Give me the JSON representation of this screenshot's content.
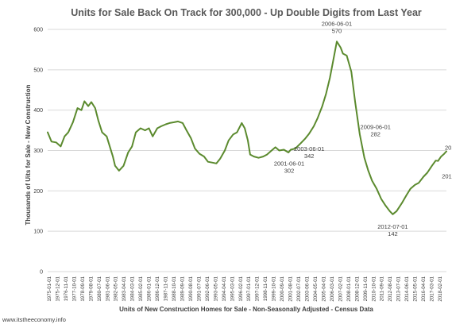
{
  "chart_data": {
    "type": "line",
    "title": "Units for Sale Back On Track for 300,000 - Up Double Digits from Last Year",
    "xlabel": "Units of New Construction Homes for Sale - Non-Seasonally Adjusted - Census Data",
    "ylabel": "Thousands of Uits for Sale - New Construction",
    "ylim": [
      0,
      600
    ],
    "yticks": [
      0,
      100,
      200,
      300,
      400,
      500,
      600
    ],
    "grid": "horizontal",
    "legend": "none",
    "x_range": [
      "1975-01-01",
      "2018-05-01"
    ],
    "x_tick_labels": [
      "1975-01-01",
      "1975-12-01",
      "1976-11-01",
      "1977-10-01",
      "1978-09-01",
      "1979-08-01",
      "1980-07-01",
      "1981-06-01",
      "1982-05-01",
      "1983-04-01",
      "1984-03-01",
      "1985-02-01",
      "1986-01-01",
      "1986-12-01",
      "1987-11-01",
      "1988-10-01",
      "1989-09-01",
      "1990-08-01",
      "1991-07-01",
      "1992-06-01",
      "1993-05-01",
      "1994-04-01",
      "1995-03-01",
      "1996-02-01",
      "1997-01-01",
      "1997-12-01",
      "1998-11-01",
      "1999-10-01",
      "2000-09-01",
      "2001-08-01",
      "2002-07-01",
      "2003-06-01",
      "2004-05-01",
      "2005-04-01",
      "2006-03-01",
      "2007-02-01",
      "2008-01-01",
      "2008-12-01",
      "2009-11-01",
      "2010-10-01",
      "2011-09-01",
      "2012-08-01",
      "2013-07-01",
      "2014-06-01",
      "2015-05-01",
      "2016-04-01",
      "2017-03-01",
      "2018-02-01"
    ],
    "series": [
      {
        "color": "#5b8a2e",
        "points": [
          [
            "1975-01-01",
            345
          ],
          [
            "1975-06-01",
            322
          ],
          [
            "1975-12-01",
            320
          ],
          [
            "1976-06-01",
            310
          ],
          [
            "1976-11-01",
            335
          ],
          [
            "1977-04-01",
            345
          ],
          [
            "1977-10-01",
            370
          ],
          [
            "1978-04-01",
            405
          ],
          [
            "1978-09-01",
            400
          ],
          [
            "1979-01-01",
            422
          ],
          [
            "1979-06-01",
            410
          ],
          [
            "1979-10-01",
            420
          ],
          [
            "1980-03-01",
            405
          ],
          [
            "1980-07-01",
            375
          ],
          [
            "1980-12-01",
            345
          ],
          [
            "1981-06-01",
            335
          ],
          [
            "1981-10-01",
            310
          ],
          [
            "1982-02-01",
            285
          ],
          [
            "1982-05-01",
            262
          ],
          [
            "1982-10-01",
            250
          ],
          [
            "1983-04-01",
            262
          ],
          [
            "1983-10-01",
            295
          ],
          [
            "1984-03-01",
            310
          ],
          [
            "1984-08-01",
            345
          ],
          [
            "1985-02-01",
            355
          ],
          [
            "1985-08-01",
            350
          ],
          [
            "1986-01-01",
            355
          ],
          [
            "1986-06-01",
            335
          ],
          [
            "1986-12-01",
            355
          ],
          [
            "1987-05-01",
            360
          ],
          [
            "1987-11-01",
            365
          ],
          [
            "1988-04-01",
            368
          ],
          [
            "1988-10-01",
            370
          ],
          [
            "1989-03-01",
            372
          ],
          [
            "1989-09-01",
            368
          ],
          [
            "1990-02-01",
            350
          ],
          [
            "1990-08-01",
            330
          ],
          [
            "1991-01-01",
            305
          ],
          [
            "1991-07-01",
            292
          ],
          [
            "1992-01-01",
            285
          ],
          [
            "1992-06-01",
            272
          ],
          [
            "1992-12-01",
            270
          ],
          [
            "1993-05-01",
            268
          ],
          [
            "1993-10-01",
            280
          ],
          [
            "1994-04-01",
            300
          ],
          [
            "1994-09-01",
            325
          ],
          [
            "1995-03-01",
            340
          ],
          [
            "1995-08-01",
            345
          ],
          [
            "1996-02-01",
            368
          ],
          [
            "1996-06-01",
            355
          ],
          [
            "1996-10-01",
            325
          ],
          [
            "1997-01-01",
            290
          ],
          [
            "1997-06-01",
            285
          ],
          [
            "1997-12-01",
            282
          ],
          [
            "1998-06-01",
            285
          ],
          [
            "1998-11-01",
            290
          ],
          [
            "1999-05-01",
            300
          ],
          [
            "1999-10-01",
            308
          ],
          [
            "2000-03-01",
            300
          ],
          [
            "2000-09-01",
            302
          ],
          [
            "2001-03-01",
            295
          ],
          [
            "2001-06-01",
            302
          ],
          [
            "2001-12-01",
            305
          ],
          [
            "2002-07-01",
            318
          ],
          [
            "2003-01-01",
            330
          ],
          [
            "2003-06-01",
            342
          ],
          [
            "2003-12-01",
            360
          ],
          [
            "2004-05-01",
            380
          ],
          [
            "2004-11-01",
            410
          ],
          [
            "2005-04-01",
            440
          ],
          [
            "2005-09-01",
            480
          ],
          [
            "2006-01-01",
            520
          ],
          [
            "2006-06-01",
            570
          ],
          [
            "2006-11-01",
            555
          ],
          [
            "2007-02-01",
            540
          ],
          [
            "2007-07-01",
            535
          ],
          [
            "2008-01-01",
            495
          ],
          [
            "2008-06-01",
            420
          ],
          [
            "2008-12-01",
            340
          ],
          [
            "2009-06-01",
            282
          ],
          [
            "2009-11-01",
            250
          ],
          [
            "2010-04-01",
            225
          ],
          [
            "2010-10-01",
            205
          ],
          [
            "2011-04-01",
            180
          ],
          [
            "2011-09-01",
            165
          ],
          [
            "2012-03-01",
            150
          ],
          [
            "2012-07-01",
            142
          ],
          [
            "2012-12-01",
            150
          ],
          [
            "2013-07-01",
            170
          ],
          [
            "2014-01-01",
            190
          ],
          [
            "2014-06-01",
            205
          ],
          [
            "2014-12-01",
            215
          ],
          [
            "2015-05-01",
            220
          ],
          [
            "2015-11-01",
            235
          ],
          [
            "2016-04-01",
            245
          ],
          [
            "2016-10-01",
            262
          ],
          [
            "2017-03-01",
            275
          ],
          [
            "2017-06-01",
            274
          ],
          [
            "2017-10-01",
            285
          ],
          [
            "2018-02-01",
            292
          ],
          [
            "2018-05-01",
            298
          ]
        ]
      }
    ],
    "annotations": [
      {
        "date": "2006-06-01",
        "value": "570",
        "x": "2006-06-01",
        "y": 570
      },
      {
        "date": "2003-06-01",
        "value": "342",
        "x": "2003-06-01",
        "y": 342
      },
      {
        "date": "2001-06-01",
        "value": "302",
        "x": "2001-06-01",
        "y": 302
      },
      {
        "date": "2009-06-01",
        "value": "282",
        "x": "2009-06-01",
        "y": 282
      },
      {
        "date": "2012-07-01",
        "value": "142",
        "x": "2012-07-01",
        "y": 142
      },
      {
        "date": "2018-05-01",
        "value": "298",
        "x": "2018-05-01",
        "y": 298
      },
      {
        "date": "2017-06-01",
        "value": "274",
        "x": "2017-06-01",
        "y": 274
      }
    ]
  },
  "source_text": "www.itstheeconomy.info"
}
